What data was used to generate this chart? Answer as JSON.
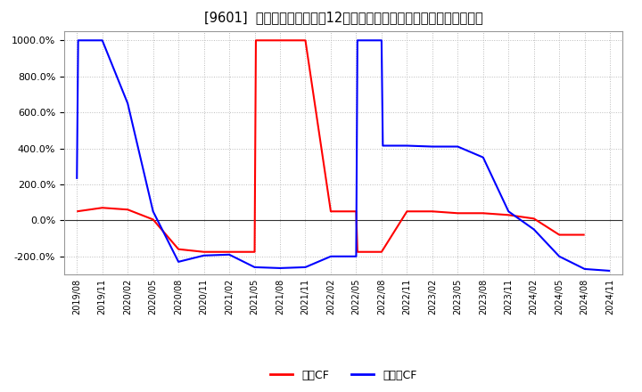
{
  "title": "[9601]  キャッシュフローの12か月移動合計の対前年同期増減率の推移",
  "title_fontsize": 10.5,
  "background_color": "#ffffff",
  "plot_bg_color": "#ffffff",
  "grid_color": "#aaaaaa",
  "ylim": [
    -300,
    1050
  ],
  "yticks": [
    -200,
    0,
    200,
    400,
    600,
    800,
    1000
  ],
  "legend_labels": [
    "営業CF",
    "フリーCF"
  ],
  "legend_colors": [
    "#ff0000",
    "#0000ff"
  ],
  "x_labels": [
    "2019/08",
    "2019/11",
    "2020/02",
    "2020/05",
    "2020/08",
    "2020/11",
    "2021/02",
    "2021/05",
    "2021/08",
    "2021/11",
    "2022/02",
    "2022/05",
    "2022/08",
    "2022/11",
    "2023/02",
    "2023/05",
    "2023/08",
    "2023/11",
    "2024/02",
    "2024/05",
    "2024/08",
    "2024/11"
  ],
  "op_x": [
    0,
    1,
    2,
    3,
    4,
    5,
    6,
    7,
    7.05,
    8,
    9,
    10,
    11,
    11.05,
    12,
    13,
    14,
    15,
    16,
    17,
    18,
    19,
    20
  ],
  "op_y": [
    50,
    70,
    60,
    5,
    -160,
    -175,
    -175,
    -175,
    1000,
    1000,
    1000,
    50,
    50,
    -175,
    -175,
    50,
    50,
    40,
    40,
    30,
    10,
    -80,
    -80
  ],
  "fr_x": [
    0,
    0.05,
    1,
    2,
    3,
    4,
    5,
    6,
    7,
    8,
    9,
    10,
    11,
    11.05,
    12,
    12.05,
    13,
    14,
    15,
    16,
    17,
    18,
    19,
    20,
    21
  ],
  "fr_y": [
    230,
    1000,
    1000,
    650,
    50,
    -230,
    -195,
    -190,
    -260,
    -265,
    -260,
    -200,
    -200,
    1000,
    1000,
    415,
    415,
    410,
    410,
    350,
    50,
    -50,
    -200,
    -270,
    -280
  ]
}
